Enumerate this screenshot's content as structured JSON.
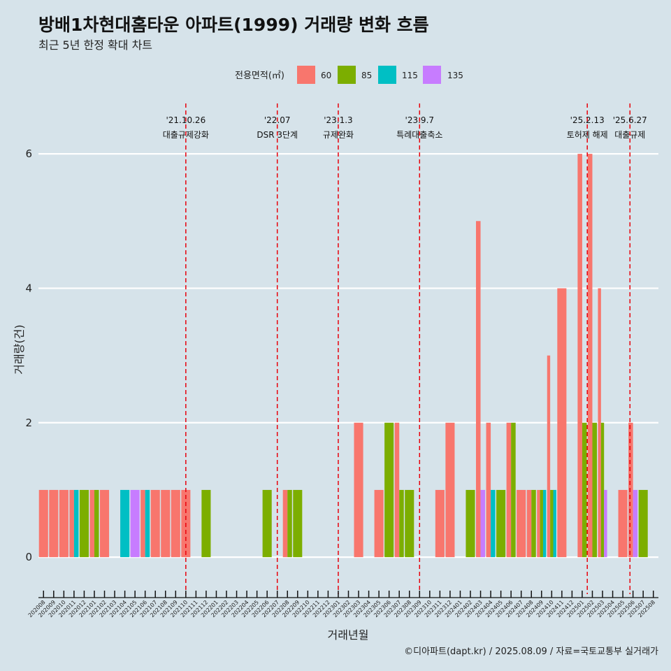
{
  "title": "방배1차현대홈타운 아파트(1999) 거래량 변화 흐름",
  "subtitle": "최근 5년 한정 확대 차트",
  "caption": "©디아파트(dapt.kr) / 2025.08.09 / 자료=국토교통부 실거래가",
  "colors": {
    "60": "#f8766d",
    "85": "#7cae00",
    "115": "#00bfc4",
    "135": "#c77cff",
    "event_line": "#e8000b",
    "background": "#d6e3ea",
    "grid": "#ffffff"
  },
  "chart_data": {
    "type": "bar",
    "title": "방배1차현대홈타운 아파트(1999) 거래량 변화 흐름",
    "xlabel": "거래년월",
    "ylabel": "거래량(건)",
    "ylim": [
      -0.55,
      6.75
    ],
    "yticks": [
      0,
      2,
      4,
      6
    ],
    "legend_title": "전용면적(㎡)",
    "legend_position": "top",
    "series_names": [
      "60",
      "85",
      "115",
      "135"
    ],
    "categories": [
      "202008",
      "202009",
      "202010",
      "202011",
      "202012",
      "202101",
      "202102",
      "202103",
      "202104",
      "202105",
      "202106",
      "202107",
      "202108",
      "202109",
      "202110",
      "202111",
      "202112",
      "202201",
      "202202",
      "202203",
      "202204",
      "202205",
      "202206",
      "202207",
      "202208",
      "202209",
      "202210",
      "202211",
      "202212",
      "202301",
      "202302",
      "202303",
      "202304",
      "202305",
      "202306",
      "202307",
      "202308",
      "202309",
      "202310",
      "202311",
      "202312",
      "202401",
      "202402",
      "202403",
      "202404",
      "202405",
      "202406",
      "202407",
      "202408",
      "202409",
      "202410",
      "202411",
      "202412",
      "202501",
      "202502",
      "202503",
      "202504",
      "202505",
      "202506",
      "202507",
      "202508"
    ],
    "data": [
      {
        "month": "202008",
        "bars": [
          {
            "area": "60",
            "value": 1
          }
        ]
      },
      {
        "month": "202009",
        "bars": [
          {
            "area": "60",
            "value": 1
          }
        ]
      },
      {
        "month": "202010",
        "bars": [
          {
            "area": "60",
            "value": 1
          }
        ]
      },
      {
        "month": "202011",
        "bars": [
          {
            "area": "60",
            "value": 1
          },
          {
            "area": "115",
            "value": 1
          }
        ]
      },
      {
        "month": "202012",
        "bars": [
          {
            "area": "85",
            "value": 1
          }
        ]
      },
      {
        "month": "202101",
        "bars": [
          {
            "area": "60",
            "value": 1
          },
          {
            "area": "85",
            "value": 1
          }
        ]
      },
      {
        "month": "202102",
        "bars": [
          {
            "area": "60",
            "value": 1
          }
        ]
      },
      {
        "month": "202104",
        "bars": [
          {
            "area": "115",
            "value": 1
          }
        ]
      },
      {
        "month": "202105",
        "bars": [
          {
            "area": "135",
            "value": 1
          }
        ]
      },
      {
        "month": "202106",
        "bars": [
          {
            "area": "60",
            "value": 1
          },
          {
            "area": "115",
            "value": 1
          }
        ]
      },
      {
        "month": "202107",
        "bars": [
          {
            "area": "60",
            "value": 1
          }
        ]
      },
      {
        "month": "202108",
        "bars": [
          {
            "area": "60",
            "value": 1
          }
        ]
      },
      {
        "month": "202109",
        "bars": [
          {
            "area": "60",
            "value": 1
          }
        ]
      },
      {
        "month": "202110",
        "bars": [
          {
            "area": "60",
            "value": 1
          }
        ]
      },
      {
        "month": "202112",
        "bars": [
          {
            "area": "85",
            "value": 1
          }
        ]
      },
      {
        "month": "202206",
        "bars": [
          {
            "area": "85",
            "value": 1
          }
        ]
      },
      {
        "month": "202208",
        "bars": [
          {
            "area": "60",
            "value": 1
          },
          {
            "area": "85",
            "value": 1
          }
        ]
      },
      {
        "month": "202209",
        "bars": [
          {
            "area": "85",
            "value": 1
          }
        ]
      },
      {
        "month": "202303",
        "bars": [
          {
            "area": "60",
            "value": 2
          }
        ]
      },
      {
        "month": "202305",
        "bars": [
          {
            "area": "60",
            "value": 1
          }
        ]
      },
      {
        "month": "202306",
        "bars": [
          {
            "area": "85",
            "value": 2
          }
        ]
      },
      {
        "month": "202307",
        "bars": [
          {
            "area": "60",
            "value": 2
          },
          {
            "area": "85",
            "value": 1
          }
        ]
      },
      {
        "month": "202308",
        "bars": [
          {
            "area": "85",
            "value": 1
          }
        ]
      },
      {
        "month": "202311",
        "bars": [
          {
            "area": "60",
            "value": 1
          }
        ]
      },
      {
        "month": "202312",
        "bars": [
          {
            "area": "60",
            "value": 2
          }
        ]
      },
      {
        "month": "202402",
        "bars": [
          {
            "area": "85",
            "value": 1
          }
        ]
      },
      {
        "month": "202403",
        "bars": [
          {
            "area": "60",
            "value": 5
          },
          {
            "area": "135",
            "value": 1
          }
        ]
      },
      {
        "month": "202404",
        "bars": [
          {
            "area": "60",
            "value": 2
          },
          {
            "area": "115",
            "value": 1
          }
        ]
      },
      {
        "month": "202405",
        "bars": [
          {
            "area": "85",
            "value": 1
          }
        ]
      },
      {
        "month": "202406",
        "bars": [
          {
            "area": "60",
            "value": 2
          },
          {
            "area": "85",
            "value": 2
          }
        ]
      },
      {
        "month": "202407",
        "bars": [
          {
            "area": "60",
            "value": 1
          }
        ]
      },
      {
        "month": "202408",
        "bars": [
          {
            "area": "60",
            "value": 1
          },
          {
            "area": "85",
            "value": 1
          }
        ]
      },
      {
        "month": "202409",
        "bars": [
          {
            "area": "60",
            "value": 1
          },
          {
            "area": "85",
            "value": 1
          },
          {
            "area": "115",
            "value": 1
          }
        ]
      },
      {
        "month": "202410",
        "bars": [
          {
            "area": "60",
            "value": 3
          },
          {
            "area": "85",
            "value": 1
          },
          {
            "area": "115",
            "value": 1
          }
        ]
      },
      {
        "month": "202411",
        "bars": [
          {
            "area": "60",
            "value": 4
          }
        ]
      },
      {
        "month": "202501",
        "bars": [
          {
            "area": "60",
            "value": 6
          },
          {
            "area": "85",
            "value": 2
          }
        ]
      },
      {
        "month": "202502",
        "bars": [
          {
            "area": "60",
            "value": 6
          },
          {
            "area": "85",
            "value": 2
          }
        ]
      },
      {
        "month": "202503",
        "bars": [
          {
            "area": "60",
            "value": 4
          },
          {
            "area": "85",
            "value": 2
          },
          {
            "area": "135",
            "value": 1
          }
        ]
      },
      {
        "month": "202505",
        "bars": [
          {
            "area": "60",
            "value": 1
          }
        ]
      },
      {
        "month": "202506",
        "bars": [
          {
            "area": "60",
            "value": 2
          },
          {
            "area": "135",
            "value": 1
          }
        ]
      },
      {
        "month": "202507",
        "bars": [
          {
            "area": "85",
            "value": 1
          }
        ]
      }
    ],
    "events": [
      {
        "x_month_index": 14.5,
        "date": "'21.10.26",
        "label": "대출규제강화"
      },
      {
        "x_month_index": 23.5,
        "date": "'22.07",
        "label": "DSR 3단계"
      },
      {
        "x_month_index": 29.5,
        "date": "'23.1.3",
        "label": "규제완화"
      },
      {
        "x_month_index": 37.5,
        "date": "'23.9.7",
        "label": "특례대출축소"
      },
      {
        "x_month_index": 54.0,
        "date": "'25.2.13",
        "label": "토허제 해제"
      },
      {
        "x_month_index": 58.2,
        "date": "'25.6.27",
        "label": "대출규제"
      }
    ]
  }
}
